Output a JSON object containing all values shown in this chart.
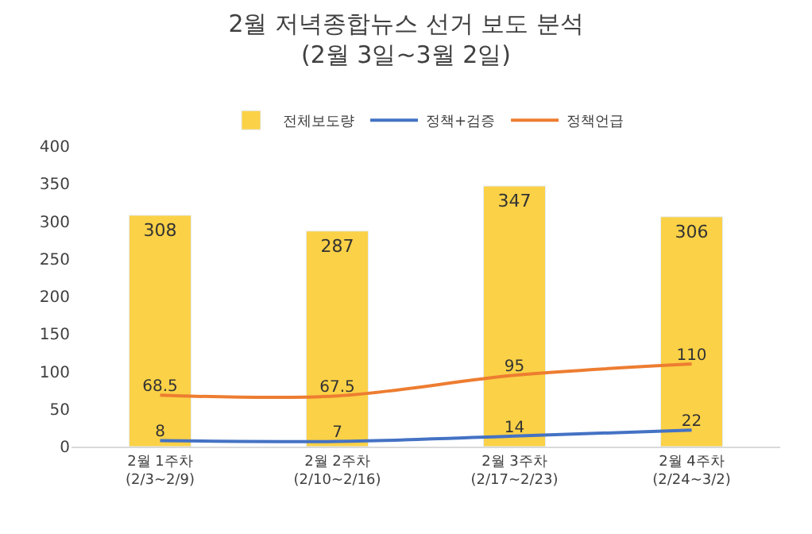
{
  "chart_data": {
    "type": "bar",
    "title": "2월 저녁종합뉴스 선거 보도 분석\n(2월 3일~3월 2일)",
    "categories": [
      "2월 1주차\n(2/3~2/9)",
      "2월 2주차\n(2/10~2/16)",
      "2월 3주차\n(2/17~2/23)",
      "2월 4주차\n(2/24~3/2)"
    ],
    "series": [
      {
        "name": "전체보도량",
        "color": "#fbd147",
        "values": [
          308,
          287,
          347,
          306
        ]
      },
      {
        "name": "정책+검증",
        "type": "line",
        "color": "#4472c4",
        "values": [
          8,
          7,
          14,
          22
        ]
      },
      {
        "name": "정책언급",
        "type": "line",
        "color": "#ed7d31",
        "values": [
          68.5,
          67.5,
          95,
          110
        ]
      }
    ],
    "ylim": [
      0,
      400
    ],
    "yticks": [
      0,
      50,
      100,
      150,
      200,
      250,
      300,
      350,
      400
    ],
    "data_labels": true,
    "legend": "top",
    "grid": false,
    "marker": "none"
  }
}
